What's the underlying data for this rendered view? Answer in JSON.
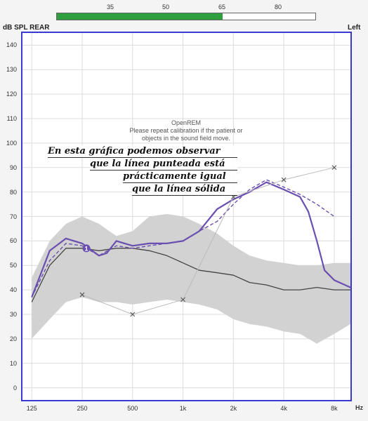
{
  "top_bar": {
    "scale_ticks": [
      "35",
      "50",
      "65",
      "80"
    ],
    "level_fraction": 0.64,
    "level_color": "#2e9e3e",
    "title_left": "dB SPL REAR",
    "title_right": "Left"
  },
  "notice": {
    "title": "OpenREM",
    "line1": "Please repeat calibration if the patient or",
    "line2": "objects in the sound field move."
  },
  "annotation": {
    "line1": "En esta gráfica podemos observar",
    "line2": "que la línea punteada está",
    "line3": "prácticamente igual",
    "line4": "que la línea sólida"
  },
  "chart_data": {
    "type": "line",
    "x_unit_label": "Hz",
    "x_tick_labels": [
      "125",
      "250",
      "500",
      "1k",
      "2k",
      "4k",
      "8k"
    ],
    "x_ticks_hz": [
      125,
      250,
      500,
      1000,
      2000,
      4000,
      8000
    ],
    "y_ticks": [
      0,
      10,
      20,
      30,
      40,
      50,
      60,
      70,
      80,
      90,
      100,
      110,
      120,
      130,
      140
    ],
    "ylim": [
      -5,
      145
    ],
    "xlim_hz": [
      110,
      10000
    ],
    "x_scale": "log",
    "grid": true,
    "series": [
      {
        "style": "band",
        "color": "#d2d2d2",
        "x": [
          125,
          160,
          200,
          250,
          315,
          400,
          500,
          630,
          800,
          1000,
          1250,
          1600,
          2000,
          2500,
          3150,
          4000,
          5000,
          6300,
          8000,
          10000
        ],
        "upper": [
          45,
          60,
          67,
          70,
          67,
          62,
          64,
          70,
          71,
          70,
          67,
          63,
          58,
          54,
          52,
          51,
          50,
          50,
          51,
          51
        ],
        "lower": [
          20,
          28,
          35,
          37,
          35,
          35,
          34,
          35,
          36,
          35,
          34,
          32,
          28,
          26,
          25,
          23,
          22,
          18,
          22,
          26
        ]
      },
      {
        "style": "solid",
        "color": "#444444",
        "width": 1.3,
        "x": [
          125,
          160,
          200,
          250,
          315,
          400,
          500,
          630,
          800,
          1000,
          1250,
          1600,
          2000,
          2500,
          3150,
          4000,
          5000,
          6300,
          8000,
          10000
        ],
        "y": [
          35,
          50,
          57,
          57,
          56,
          57,
          57,
          56,
          54,
          51,
          48,
          47,
          46,
          43,
          42,
          40,
          40,
          41,
          40,
          40
        ]
      },
      {
        "style": "solid",
        "color": "#6a4fb0",
        "width": 2.2,
        "x": [
          125,
          160,
          200,
          250,
          315,
          350,
          400,
          500,
          630,
          800,
          1000,
          1250,
          1600,
          2000,
          2500,
          3150,
          4000,
          5000,
          5600,
          6300,
          7000,
          8000,
          10000
        ],
        "y": [
          37,
          56,
          61,
          59,
          54,
          55,
          60,
          58,
          59,
          59,
          60,
          64,
          73,
          77,
          80,
          84,
          81,
          78,
          72,
          60,
          48,
          44,
          41
        ]
      },
      {
        "style": "dashed",
        "color": "#6a4fb0",
        "width": 1.4,
        "x": [
          125,
          160,
          200,
          250,
          315,
          400,
          500,
          630,
          800,
          1000,
          1250,
          1600,
          2000,
          2500,
          3150,
          4000,
          5000,
          6300,
          8000
        ],
        "y": [
          37,
          52,
          59,
          58,
          54,
          58,
          57,
          58,
          59,
          60,
          64,
          68,
          75,
          81,
          85,
          82,
          79,
          75,
          70
        ]
      },
      {
        "style": "thin-markers",
        "color": "#bbbbbb",
        "width": 1,
        "marker": "x",
        "marker_color": "#555555",
        "x": [
          250,
          500,
          1000,
          2000,
          4000,
          8000
        ],
        "y": [
          38,
          30,
          36,
          78,
          85,
          90
        ]
      }
    ],
    "point_markers": [
      {
        "x": 265,
        "y": 57,
        "label": "1",
        "color": "#6a4fb0"
      }
    ]
  }
}
